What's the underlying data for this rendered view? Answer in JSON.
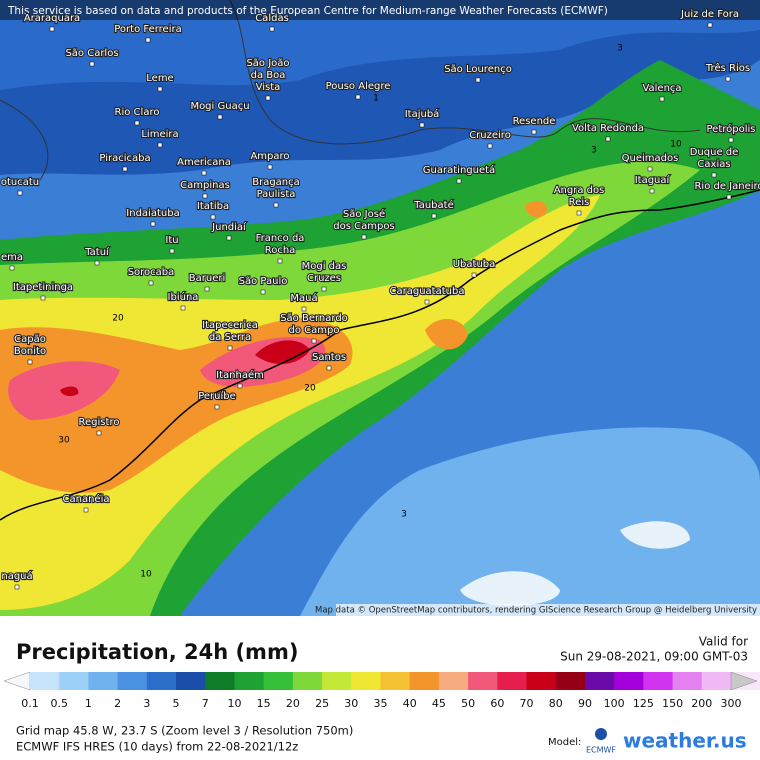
{
  "banner": "This service is based on data and products of the European Centre for Medium-range Weather Forecasts (ECMWF)",
  "attribution": "Map data © OpenStreetMap contributors, rendering GIScience Research Group @ Heidelberg University",
  "cities": [
    [
      "Araraquara"
    ],
    [
      "Porto Ferreira"
    ],
    [
      "Caldas"
    ],
    [
      "Juiz de Fora"
    ],
    [
      "São Carlos"
    ],
    [
      "São João",
      "da Boa",
      "Vista"
    ],
    [
      "Pouso Alegre"
    ],
    [
      "São Lourenço"
    ],
    [
      "Três Rios"
    ],
    [
      "Leme"
    ],
    [
      "Mogi Guaçu"
    ],
    [
      "Valença"
    ],
    [
      "Rio Claro"
    ],
    [
      "Itajubá"
    ],
    [
      "Resende"
    ],
    [
      "Volta Redonda"
    ],
    [
      "Petrópolis"
    ],
    [
      "Limeira"
    ],
    [
      "Cruzeiro"
    ],
    [
      "Piracicaba"
    ],
    [
      "Americana"
    ],
    [
      "Amparo"
    ],
    [
      "Queimados"
    ],
    [
      "Duque de",
      "Caxias"
    ],
    [
      "Guaratinguetá"
    ],
    [
      "Campinas"
    ],
    [
      "Bragança",
      "Paulista"
    ],
    [
      "Itaguaí"
    ],
    [
      "Rio de Janeiro"
    ],
    [
      "Angra dos",
      "Reis"
    ],
    [
      "otucatu"
    ],
    [
      "Indaiatuba"
    ],
    [
      "Itatiba"
    ],
    [
      "São José",
      "dos Campos"
    ],
    [
      "Taubaté"
    ],
    [
      "Itu"
    ],
    [
      "Jundiaí"
    ],
    [
      "Franco da",
      "Rocha"
    ],
    [
      "Tatuí"
    ],
    [
      "Mogi das",
      "Cruzes"
    ],
    [
      "Ubatuba"
    ],
    [
      "Sorocaba"
    ],
    [
      "Barueri"
    ],
    [
      "São Paulo"
    ],
    [
      "Itapetininga"
    ],
    [
      "Caraguatatuba"
    ],
    [
      "Ibiúna"
    ],
    [
      "Mauá"
    ],
    [
      "São Bernardo",
      "do Campo"
    ],
    [
      "Itapecerica",
      "da Serra"
    ],
    [
      "Capão",
      "Bonito"
    ],
    [
      "Santos"
    ],
    [
      "Itanhaém"
    ],
    [
      "Peruíbe"
    ],
    [
      "Registro"
    ],
    [
      "Cananéia"
    ],
    [
      "naguá"
    ],
    [
      "ema"
    ]
  ],
  "contour_labels": [
    "20",
    "30",
    "20",
    "10",
    "3",
    "3",
    "1",
    "10",
    "3"
  ],
  "footer": {
    "title": "Precipitation, 24h (mm)",
    "valid_label": "Valid for",
    "valid_time": "Sun 29-08-2021, 09:00 GMT-03",
    "legend_labels": [
      "0.1",
      "0.5",
      "1",
      "2",
      "3",
      "5",
      "7",
      "10",
      "15",
      "20",
      "25",
      "30",
      "35",
      "40",
      "45",
      "50",
      "60",
      "70",
      "80",
      "90",
      "100",
      "125",
      "150",
      "200",
      "300"
    ],
    "legend_colors": [
      "#f4f8fc",
      "#c5e4fb",
      "#9cd0f7",
      "#6fb2ee",
      "#4a91e2",
      "#2c6fcb",
      "#1a4ea8",
      "#0f7d28",
      "#1ea233",
      "#36c03a",
      "#7fd83a",
      "#c4e836",
      "#f0e634",
      "#f3c131",
      "#f3952b",
      "#f7ac80",
      "#f2587a",
      "#e61e4d",
      "#c90018",
      "#950016",
      "#6b0aa8",
      "#a400dc",
      "#d233f0",
      "#e482f2",
      "#f1b8f6",
      "#f8e6fa",
      "#c8c8c8"
    ],
    "grid_info": "Grid map 45.8 W, 23.7 S (Zoom level 3 / Resolution 750m)",
    "model_info": "ECMWF IFS HRES (10 days) from 22-08-2021/12z",
    "model_label": "Model:",
    "model_name": "ECMWF",
    "brand": "weather.us"
  }
}
